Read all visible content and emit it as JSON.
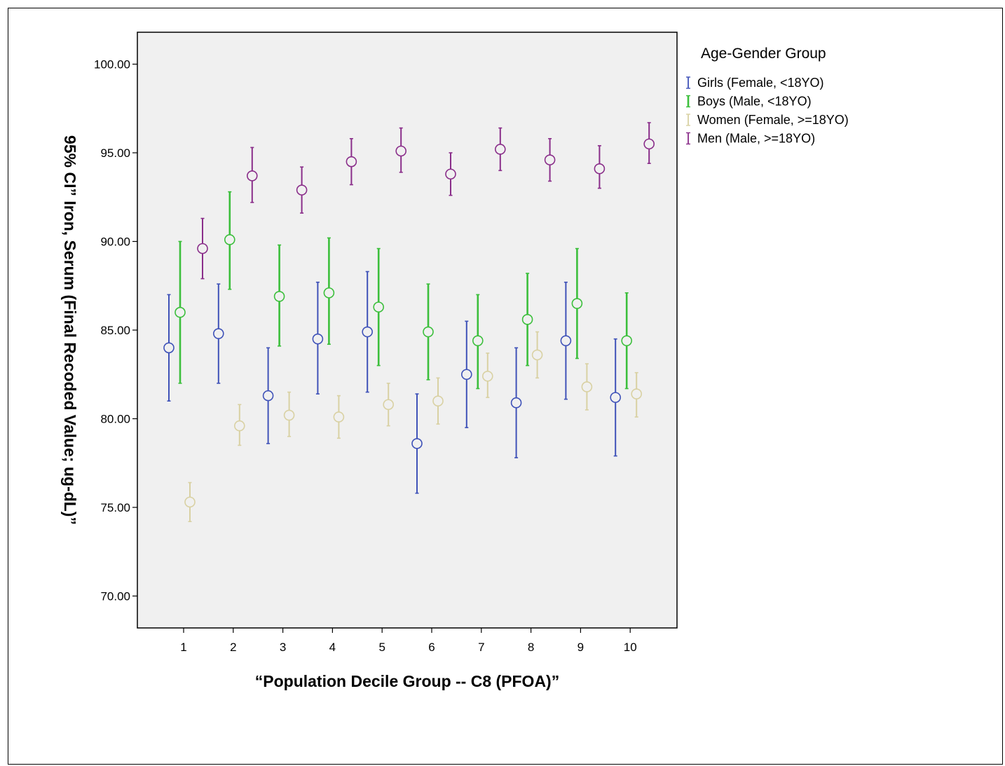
{
  "chart_data": {
    "type": "scatter",
    "subtype": "error-bar",
    "xlabel": "“Population Decile Group --  C8 (PFOA)”",
    "ylabel": "95% CI” Iron, Serum (Final Recoded Value; ug-dL)”",
    "x": [
      "1",
      "2",
      "3",
      "4",
      "5",
      "6",
      "7",
      "8",
      "9",
      "10"
    ],
    "ylim": [
      68.2,
      101.8
    ],
    "yticks": [
      "70.00",
      "75.00",
      "80.00",
      "85.00",
      "90.00",
      "95.00",
      "100.00"
    ],
    "ytick_values": [
      70,
      75,
      80,
      85,
      90,
      95,
      100
    ],
    "legend": {
      "title": "Age-Gender Group",
      "position": "right"
    },
    "grid": false,
    "series": [
      {
        "name": "Girls (Female, <18YO)",
        "color": "#3f52b8",
        "mean": [
          84.0,
          84.8,
          81.3,
          84.5,
          84.9,
          78.6,
          82.5,
          80.9,
          84.4,
          81.2
        ],
        "lower": [
          81.0,
          82.0,
          78.6,
          81.4,
          81.5,
          75.8,
          79.5,
          77.8,
          81.1,
          77.9
        ],
        "upper": [
          87.0,
          87.6,
          84.0,
          87.7,
          88.3,
          81.4,
          85.5,
          84.0,
          87.7,
          84.5
        ]
      },
      {
        "name": "Boys (Male, <18YO)",
        "color": "#3cbf3c",
        "mean": [
          86.0,
          90.1,
          86.9,
          87.1,
          86.3,
          84.9,
          84.4,
          85.6,
          86.5,
          84.4
        ],
        "lower": [
          82.0,
          87.3,
          84.1,
          84.2,
          83.0,
          82.2,
          81.7,
          83.0,
          83.4,
          81.7
        ],
        "upper": [
          90.0,
          92.8,
          89.8,
          90.2,
          89.6,
          87.6,
          87.0,
          88.2,
          89.6,
          87.1
        ]
      },
      {
        "name": "Women (Female, >=18YO)",
        "color": "#d9d1a3",
        "mean": [
          75.3,
          79.6,
          80.2,
          80.1,
          80.8,
          81.0,
          82.4,
          83.6,
          81.8,
          81.4
        ],
        "lower": [
          74.2,
          78.5,
          79.0,
          78.9,
          79.6,
          79.7,
          81.2,
          82.3,
          80.5,
          80.1
        ],
        "upper": [
          76.4,
          80.8,
          81.5,
          81.3,
          82.0,
          82.3,
          83.7,
          84.9,
          83.1,
          82.6
        ]
      },
      {
        "name": "Men (Male, >=18YO)",
        "color": "#8a2e8a",
        "mean": [
          89.6,
          93.7,
          92.9,
          94.5,
          95.1,
          93.8,
          95.2,
          94.6,
          94.1,
          95.5
        ],
        "lower": [
          87.9,
          92.2,
          91.6,
          93.2,
          93.9,
          92.6,
          94.0,
          93.4,
          93.0,
          94.4
        ],
        "upper": [
          91.3,
          95.3,
          94.2,
          95.8,
          96.4,
          95.0,
          96.4,
          95.8,
          95.4,
          96.7
        ]
      }
    ]
  }
}
